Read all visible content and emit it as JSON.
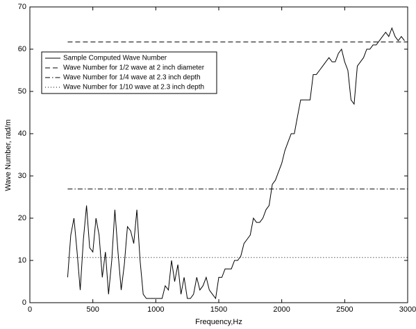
{
  "chart_data": {
    "type": "line",
    "xlabel": "Frequency,Hz",
    "ylabel": "Wave Number, rad/m",
    "xlim": [
      0,
      3000
    ],
    "ylim": [
      0,
      70
    ],
    "xticks": [
      0,
      500,
      1000,
      1500,
      2000,
      2500,
      3000
    ],
    "yticks": [
      0,
      10,
      20,
      30,
      40,
      50,
      60,
      70
    ],
    "legend": "upper left",
    "series": [
      {
        "name": "Sample Computed Wave Number",
        "color": "#000000",
        "dash": "solid",
        "x": [
          300,
          325,
          350,
          375,
          400,
          425,
          450,
          475,
          500,
          525,
          550,
          575,
          600,
          625,
          650,
          675,
          700,
          725,
          750,
          775,
          800,
          825,
          850,
          875,
          900,
          925,
          950,
          975,
          1000,
          1025,
          1050,
          1075,
          1100,
          1125,
          1150,
          1175,
          1200,
          1225,
          1250,
          1275,
          1300,
          1325,
          1350,
          1375,
          1400,
          1425,
          1450,
          1475,
          1500,
          1525,
          1550,
          1575,
          1600,
          1625,
          1650,
          1675,
          1700,
          1725,
          1750,
          1775,
          1800,
          1825,
          1850,
          1875,
          1900,
          1925,
          1950,
          1975,
          2000,
          2025,
          2050,
          2075,
          2100,
          2125,
          2150,
          2175,
          2200,
          2225,
          2250,
          2275,
          2300,
          2325,
          2350,
          2375,
          2400,
          2425,
          2450,
          2475,
          2500,
          2525,
          2550,
          2575,
          2600,
          2625,
          2650,
          2675,
          2700,
          2725,
          2750,
          2775,
          2800,
          2825,
          2850,
          2875,
          2900,
          2925,
          2950,
          2975
        ],
        "values": [
          6,
          16,
          20,
          12,
          3,
          15,
          23,
          13,
          12,
          20,
          16,
          6,
          12,
          2,
          10,
          22,
          12,
          3,
          9,
          18,
          17,
          14,
          22,
          10,
          2,
          1,
          1,
          1,
          1,
          1,
          1,
          4,
          3,
          10,
          5,
          9,
          2,
          6,
          1,
          1,
          2,
          6,
          3,
          4,
          6,
          3,
          2,
          1,
          6,
          6,
          8,
          8,
          8,
          10,
          10,
          11,
          14,
          15,
          16,
          20,
          19,
          19,
          20,
          22,
          23,
          28,
          29,
          31,
          33,
          36,
          38,
          40,
          40,
          44,
          48,
          48,
          48,
          48,
          54,
          54,
          55,
          56,
          57,
          58,
          57,
          57,
          59,
          60,
          57,
          55,
          48,
          47,
          56,
          57,
          58,
          60,
          60,
          61,
          61,
          62,
          63,
          64,
          63,
          65,
          63,
          62,
          63,
          62
        ]
      },
      {
        "name": "Wave Number for 1/2 wave at 2 inch diameter",
        "color": "#000000",
        "dash": "dashed",
        "x": [
          300,
          3000
        ],
        "values": [
          61.7,
          61.7
        ]
      },
      {
        "name": "Wave Number for 1/4 wave at 2.3 inch depth",
        "color": "#000000",
        "dash": "dashdot",
        "x": [
          300,
          3000
        ],
        "values": [
          26.9,
          26.9
        ]
      },
      {
        "name": "Wave Number for 1/10 wave at 2.3 inch depth",
        "color": "#000000",
        "dash": "dotted",
        "x": [
          300,
          3000
        ],
        "values": [
          10.7,
          10.7
        ]
      }
    ]
  }
}
